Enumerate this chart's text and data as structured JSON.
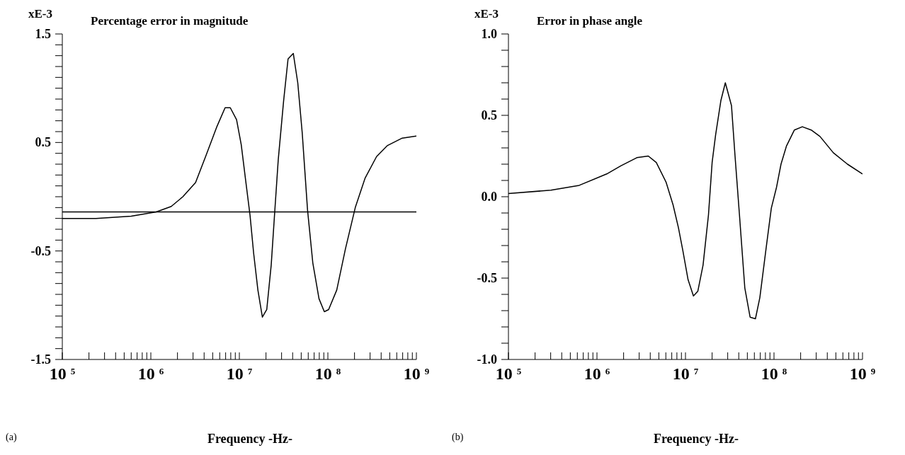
{
  "chart_data": [
    {
      "type": "line",
      "title": "Percentage error in magnitude",
      "xlabel": "Frequency -Hz-",
      "ylabel": "xE-3",
      "annotations": [
        "(a)"
      ],
      "log": "x",
      "xlim": [
        100000,
        1000000000
      ],
      "xticks": [
        {
          "value": 100000,
          "label": "10$^{5}$"
        },
        {
          "value": 200000,
          "label": null
        },
        {
          "value": 300000,
          "label": null
        },
        {
          "value": 400000,
          "label": null
        },
        {
          "value": 500000,
          "label": null
        },
        {
          "value": 600000,
          "label": null
        },
        {
          "value": 700000,
          "label": null
        },
        {
          "value": 800000,
          "label": null
        },
        {
          "value": 900000,
          "label": null
        },
        {
          "value": 1000000,
          "label": "10$^{6}$"
        },
        {
          "value": 2000000,
          "label": null
        },
        {
          "value": 3000000,
          "label": null
        },
        {
          "value": 4000000,
          "label": null
        },
        {
          "value": 5000000,
          "label": null
        },
        {
          "value": 6000000,
          "label": null
        },
        {
          "value": 7000000,
          "label": null
        },
        {
          "value": 8000000,
          "label": null
        },
        {
          "value": 9000000,
          "label": null
        },
        {
          "value": 10000000,
          "label": "10$^{7}$"
        },
        {
          "value": 20000000,
          "label": null
        },
        {
          "value": 30000000,
          "label": null
        },
        {
          "value": 40000000,
          "label": null
        },
        {
          "value": 50000000,
          "label": null
        },
        {
          "value": 60000000,
          "label": null
        },
        {
          "value": 70000000,
          "label": null
        },
        {
          "value": 80000000,
          "label": null
        },
        {
          "value": 90000000,
          "label": null
        },
        {
          "value": 100000000,
          "label": "10$^{8}$"
        },
        {
          "value": 200000000,
          "label": null
        },
        {
          "value": 300000000,
          "label": null
        },
        {
          "value": 400000000,
          "label": null
        },
        {
          "value": 500000000,
          "label": null
        },
        {
          "value": 600000000,
          "label": null
        },
        {
          "value": 700000000,
          "label": null
        },
        {
          "value": 800000000,
          "label": null
        },
        {
          "value": 900000000,
          "label": null
        },
        {
          "value": 1000000000,
          "label": "10$^{9}$"
        }
      ],
      "ylim": [
        -1.5,
        1.5
      ],
      "yticks": [
        -1.5,
        {
          "value": -1.4,
          "label": null
        },
        {
          "value": -1.3,
          "label": null
        },
        {
          "value": -1.2,
          "label": null
        },
        {
          "value": -1.1,
          "label": null
        },
        {
          "value": -1.0,
          "label": null
        },
        {
          "value": -0.9,
          "label": null
        },
        {
          "value": -0.8,
          "label": null
        },
        {
          "value": -0.7,
          "label": null
        },
        {
          "value": -0.6,
          "label": null
        },
        -0.5,
        {
          "value": -0.4,
          "label": null
        },
        {
          "value": -0.3,
          "label": null
        },
        {
          "value": -0.2,
          "label": null
        },
        {
          "value": -0.1,
          "label": null
        },
        {
          "value": 0,
          "label": null
        },
        {
          "value": 0.1,
          "label": null
        },
        {
          "value": 0.2,
          "label": null
        },
        {
          "value": 0.3,
          "label": null
        },
        {
          "value": 0.4,
          "label": null
        },
        0.5,
        {
          "value": 0.6,
          "label": null
        },
        {
          "value": 0.7,
          "label": null
        },
        {
          "value": 0.8,
          "label": null
        },
        {
          "value": 0.9,
          "label": null
        },
        {
          "value": 1.0,
          "label": null
        },
        {
          "value": 1.1,
          "label": null
        },
        {
          "value": 1.2,
          "label": null
        },
        {
          "value": 1.3,
          "label": null
        },
        {
          "value": 1.4,
          "label": null
        },
        1.5
      ],
      "ref_lines": [
        {
          "axis": "y",
          "value": -0.14,
          "color": "#000000"
        }
      ],
      "series": [
        {
          "color": "#000000",
          "x": [
            100000,
            240000,
            600000,
            1150000,
            1700000,
            2300000,
            3200000,
            4200000,
            5600000,
            6900000,
            7900000,
            9300000,
            10500000,
            11700000,
            13200000,
            14500000,
            16200000,
            18200000,
            20400000,
            22900000,
            25100000,
            27500000,
            31600000,
            35500000,
            40700000,
            45700000,
            51300000,
            58900000,
            67600000,
            79400000,
            91200000,
            102000000,
            126000000,
            158000000,
            204000000,
            263000000,
            355000000,
            468000000,
            692000000,
            1000000000
          ],
          "values": [
            -0.2,
            -0.2,
            -0.18,
            -0.14,
            -0.09,
            0.0,
            0.13,
            0.38,
            0.65,
            0.82,
            0.82,
            0.71,
            0.48,
            0.17,
            -0.17,
            -0.52,
            -0.86,
            -1.11,
            -1.04,
            -0.63,
            -0.14,
            0.34,
            0.88,
            1.27,
            1.32,
            1.05,
            0.59,
            -0.12,
            -0.61,
            -0.94,
            -1.06,
            -1.04,
            -0.86,
            -0.48,
            -0.1,
            0.17,
            0.37,
            0.47,
            0.54,
            0.56
          ]
        }
      ]
    },
    {
      "type": "line",
      "title": "Error in phase angle",
      "xlabel": "Frequency -Hz-",
      "ylabel": "xE-3",
      "annotations": [
        "(b)"
      ],
      "log": "x",
      "xlim": [
        100000,
        1000000000
      ],
      "xticks": [
        {
          "value": 100000,
          "label": "10$^{5}$"
        },
        {
          "value": 200000,
          "label": null
        },
        {
          "value": 300000,
          "label": null
        },
        {
          "value": 400000,
          "label": null
        },
        {
          "value": 500000,
          "label": null
        },
        {
          "value": 600000,
          "label": null
        },
        {
          "value": 700000,
          "label": null
        },
        {
          "value": 800000,
          "label": null
        },
        {
          "value": 900000,
          "label": null
        },
        {
          "value": 1000000,
          "label": "10$^{6}$"
        },
        {
          "value": 2000000,
          "label": null
        },
        {
          "value": 3000000,
          "label": null
        },
        {
          "value": 4000000,
          "label": null
        },
        {
          "value": 5000000,
          "label": null
        },
        {
          "value": 6000000,
          "label": null
        },
        {
          "value": 7000000,
          "label": null
        },
        {
          "value": 8000000,
          "label": null
        },
        {
          "value": 9000000,
          "label": null
        },
        {
          "value": 10000000,
          "label": "10$^{7}$"
        },
        {
          "value": 20000000,
          "label": null
        },
        {
          "value": 30000000,
          "label": null
        },
        {
          "value": 40000000,
          "label": null
        },
        {
          "value": 50000000,
          "label": null
        },
        {
          "value": 60000000,
          "label": null
        },
        {
          "value": 70000000,
          "label": null
        },
        {
          "value": 80000000,
          "label": null
        },
        {
          "value": 90000000,
          "label": null
        },
        {
          "value": 100000000,
          "label": "10$^{8}$"
        },
        {
          "value": 200000000,
          "label": null
        },
        {
          "value": 300000000,
          "label": null
        },
        {
          "value": 400000000,
          "label": null
        },
        {
          "value": 500000000,
          "label": null
        },
        {
          "value": 600000000,
          "label": null
        },
        {
          "value": 700000000,
          "label": null
        },
        {
          "value": 800000000,
          "label": null
        },
        {
          "value": 900000000,
          "label": null
        },
        {
          "value": 1000000000,
          "label": "10$^{9}$"
        }
      ],
      "ylim": [
        -1.0,
        1.0
      ],
      "yticks": [
        {
          "value": -1.0,
          "label": "-1.0"
        },
        {
          "value": -0.9,
          "label": null
        },
        {
          "value": -0.8,
          "label": null
        },
        {
          "value": -0.7,
          "label": null
        },
        {
          "value": -0.6,
          "label": null
        },
        -0.5,
        {
          "value": -0.4,
          "label": null
        },
        {
          "value": -0.3,
          "label": null
        },
        {
          "value": -0.2,
          "label": null
        },
        {
          "value": -0.1,
          "label": null
        },
        {
          "value": 0,
          "label": "0.0"
        },
        {
          "value": 0.1,
          "label": null
        },
        {
          "value": 0.2,
          "label": null
        },
        {
          "value": 0.3,
          "label": null
        },
        {
          "value": 0.4,
          "label": null
        },
        0.5,
        {
          "value": 0.6,
          "label": null
        },
        {
          "value": 0.7,
          "label": null
        },
        {
          "value": 0.8,
          "label": null
        },
        {
          "value": 0.9,
          "label": null
        },
        {
          "value": 1.0,
          "label": "1.0"
        }
      ],
      "series": [
        {
          "color": "#000000",
          "x": [
            100000,
            302000,
            631000,
            1290000,
            1860000,
            2820000,
            3800000,
            4680000,
            6030000,
            7240000,
            8320000,
            9330000,
            10700000,
            12300000,
            13800000,
            15800000,
            18200000,
            20000000,
            21900000,
            25100000,
            28200000,
            33100000,
            36300000,
            40700000,
            46800000,
            53700000,
            61700000,
            69200000,
            81300000,
            93300000,
            107000000,
            120000000,
            138000000,
            170000000,
            209000000,
            263000000,
            331000000,
            468000000,
            676000000,
            1000000000
          ],
          "values": [
            0.02,
            0.04,
            0.07,
            0.14,
            0.19,
            0.24,
            0.25,
            0.21,
            0.09,
            -0.05,
            -0.19,
            -0.33,
            -0.51,
            -0.61,
            -0.58,
            -0.42,
            -0.11,
            0.21,
            0.38,
            0.59,
            0.7,
            0.56,
            0.25,
            -0.11,
            -0.56,
            -0.74,
            -0.75,
            -0.62,
            -0.32,
            -0.07,
            0.06,
            0.2,
            0.31,
            0.41,
            0.43,
            0.41,
            0.37,
            0.27,
            0.2,
            0.14
          ]
        }
      ]
    }
  ]
}
